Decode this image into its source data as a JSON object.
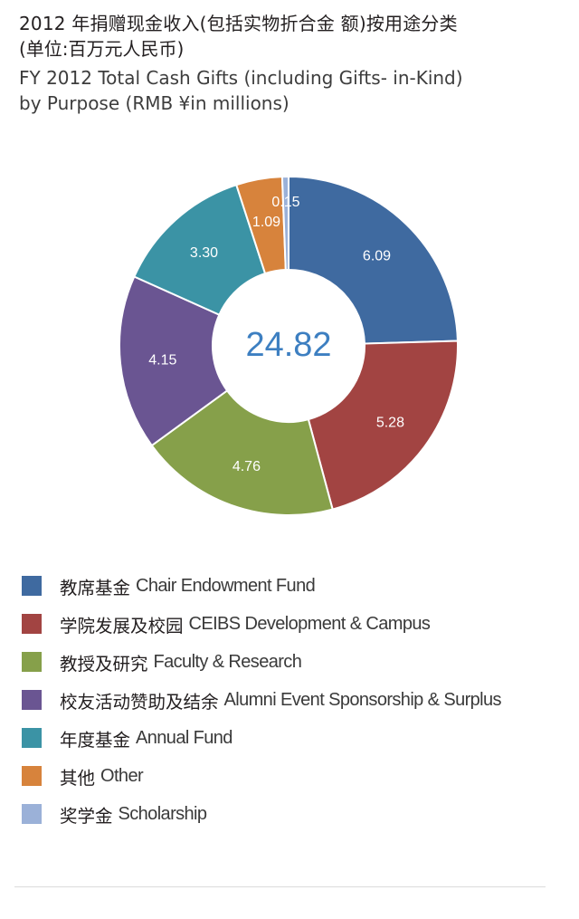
{
  "header": {
    "title_zh_line1": "2012 年捐赠现金收入(包括实物折合金 额)按用途分类",
    "title_zh_line2": "(单位:百万元人民币)",
    "title_en_line1": "FY 2012 Total Cash Gifts (including Gifts- in-Kind)",
    "title_en_line2": "by Purpose (RMB ¥in millions)"
  },
  "chart_data": {
    "type": "pie",
    "donut": true,
    "total": "24.82",
    "categories": [
      "教席基金 Chair Endowment Fund",
      "学院发展及校园 CEIBS Development & Campus",
      "教授及研究 Faculty & Research",
      "校友活动赞助及结余 Alumni Event Sponsorship & Surplus",
      "年度基金 Annual Fund",
      "其他 Other",
      "奖学金 Scholarship"
    ],
    "values": [
      6.09,
      5.28,
      4.76,
      4.15,
      3.3,
      1.09,
      0.15
    ],
    "labels": [
      "6.09",
      "5.28",
      "4.76",
      "4.15",
      "3.30",
      "1.09",
      "0.15"
    ],
    "colors": [
      "#3f6aa0",
      "#a24442",
      "#86a04a",
      "#6a5592",
      "#3b93a5",
      "#d7833c",
      "#9bb1d8"
    ],
    "start_angle_deg": 0,
    "direction": "clockwise"
  },
  "legend": [
    {
      "zh": "教席基金",
      "en": "Chair Endowment Fund",
      "color": "#3f6aa0"
    },
    {
      "zh": "学院发展及校园",
      "en": "CEIBS Development & Campus",
      "color": "#a24442"
    },
    {
      "zh": "教授及研究",
      "en": "Faculty & Research",
      "color": "#86a04a"
    },
    {
      "zh": "校友活动赞助及结余",
      "en": "Alumni Event Sponsorship & Surplus",
      "color": "#6a5592"
    },
    {
      "zh": "年度基金",
      "en": "Annual Fund",
      "color": "#3b93a5"
    },
    {
      "zh": "其他",
      "en": "Other",
      "color": "#d7833c"
    },
    {
      "zh": "奖学金",
      "en": "Scholarship",
      "color": "#9bb1d8"
    }
  ]
}
